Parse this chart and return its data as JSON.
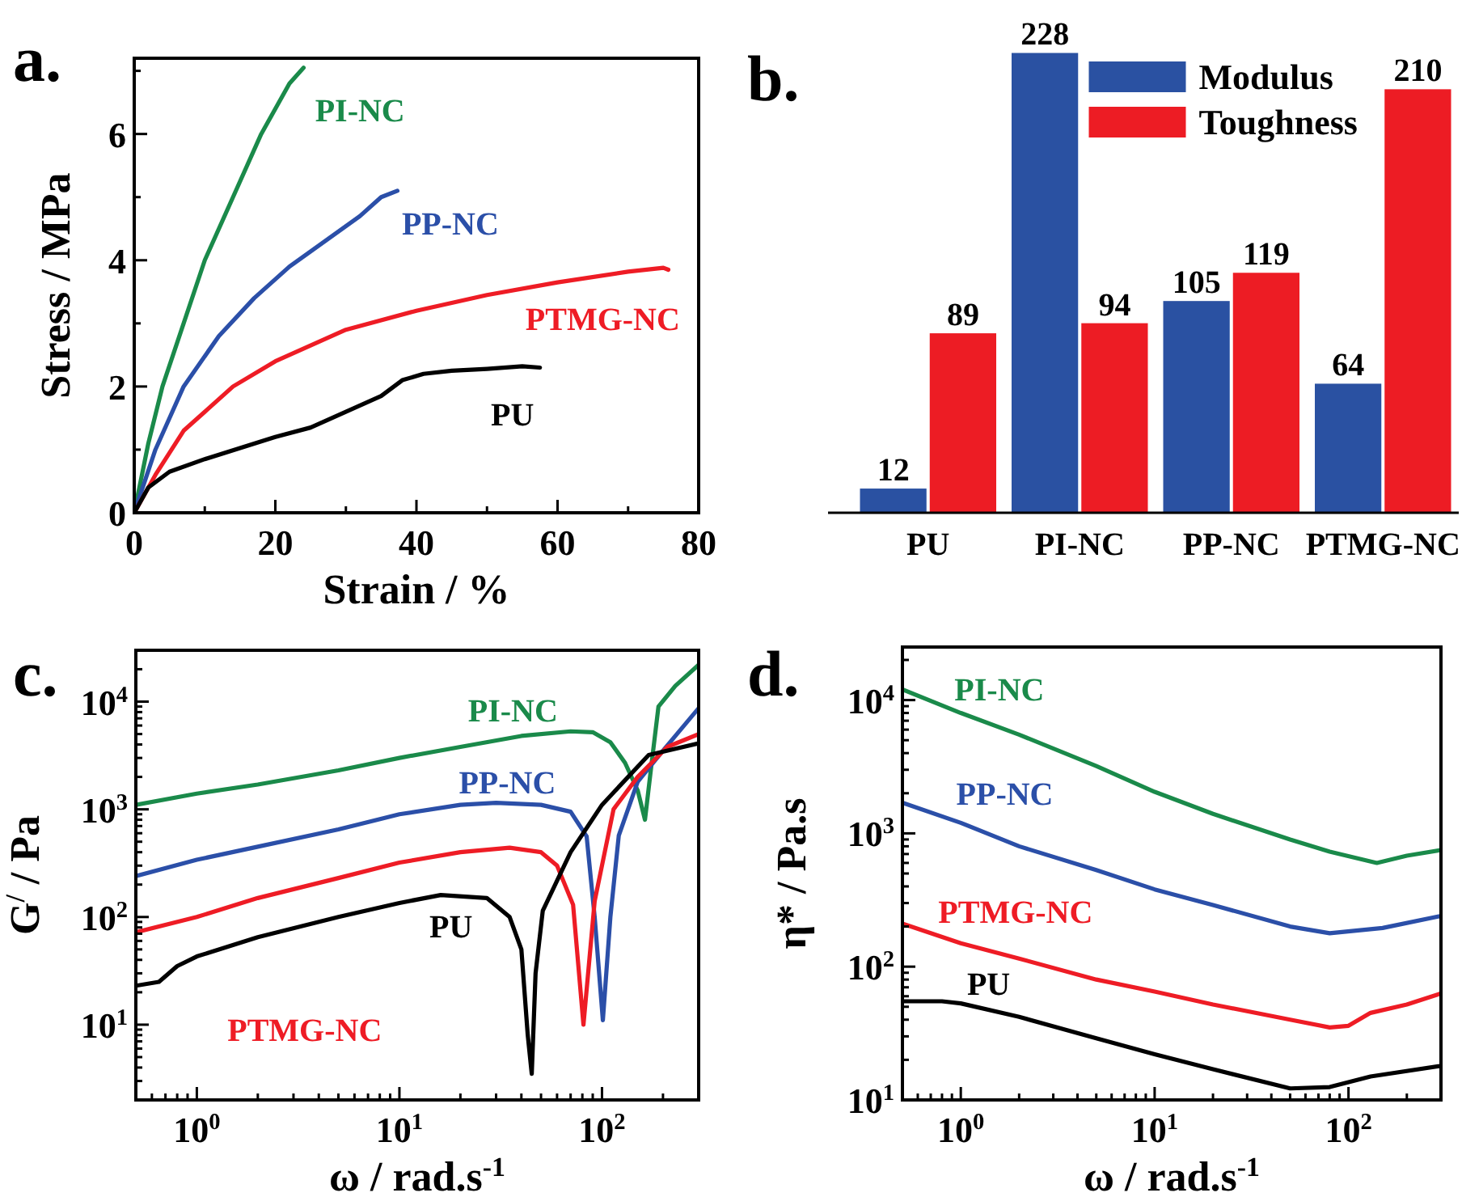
{
  "chart_data": [
    {
      "type": "line",
      "title": "a.",
      "xlabel": "Strain / %",
      "ylabel": "Stress / MPa",
      "xlim": [
        0,
        80
      ],
      "ylim": [
        0,
        7.2
      ],
      "legend": false,
      "line_style": "solid",
      "marker": "none",
      "xticks": [
        0,
        {
          "value": 10,
          "label": null
        },
        20,
        {
          "value": 30,
          "label": null
        },
        40,
        {
          "value": 50,
          "label": null
        },
        60,
        {
          "value": 70,
          "label": null
        },
        80
      ],
      "yticks": [
        0,
        {
          "value": 1,
          "label": null
        },
        2,
        {
          "value": 3,
          "label": null
        },
        4,
        {
          "value": 5,
          "label": null
        },
        6,
        {
          "value": 7,
          "label": null
        }
      ],
      "series": [
        {
          "name": "PI-NC",
          "color": "#1a8a4a",
          "x": [
            0,
            2,
            4,
            7,
            10,
            14,
            18,
            22,
            24
          ],
          "values": [
            0,
            1.1,
            2,
            3,
            4,
            5,
            6,
            6.8,
            7.05
          ]
        },
        {
          "name": "PP-NC",
          "color": "#2b4fa8",
          "x": [
            0,
            3,
            7,
            12,
            17,
            22,
            27,
            32,
            35,
            37.3
          ],
          "values": [
            0,
            1,
            2,
            2.8,
            3.4,
            3.9,
            4.3,
            4.7,
            5,
            5.1
          ]
        },
        {
          "name": "PTMG-NC",
          "color": "#ee1c25",
          "x": [
            0,
            3,
            7,
            14,
            20,
            30,
            40,
            50,
            60,
            70,
            75,
            75.7
          ],
          "values": [
            0,
            0.6,
            1.3,
            2,
            2.4,
            2.9,
            3.2,
            3.45,
            3.65,
            3.82,
            3.88,
            3.85
          ]
        },
        {
          "name": "PU",
          "color": "#000000",
          "x": [
            0,
            2,
            5,
            10,
            20,
            25,
            30,
            35,
            38,
            41,
            45,
            50,
            55,
            57.5
          ],
          "values": [
            0,
            0.4,
            0.65,
            0.85,
            1.2,
            1.35,
            1.6,
            1.85,
            2.1,
            2.2,
            2.25,
            2.28,
            2.32,
            2.3
          ]
        }
      ]
    },
    {
      "type": "bar",
      "title": "b.",
      "categories": [
        "PU",
        "PI-NC",
        "PP-NC",
        "PTMG-NC"
      ],
      "legend": "top",
      "data_labels": true,
      "series": [
        {
          "name": "Modulus",
          "color": "#2a51a2",
          "values": [
            12,
            228,
            105,
            64
          ]
        },
        {
          "name": "Toughness",
          "color": "#ed1c24",
          "values": [
            89,
            94,
            119,
            210
          ]
        }
      ]
    },
    {
      "type": "line",
      "title": "c.",
      "xlabel": "ω / rad.s$^{-1}$",
      "ylabel": "G$^{/}$ / Pa",
      "log": "xy",
      "xlim": [
        0.5,
        300
      ],
      "ylim": [
        2,
        30000
      ],
      "legend": false,
      "line_style": "solid",
      "marker": "none",
      "xticks": [
        {
          "value": 0.5,
          "label": null
        },
        {
          "value": 0.6,
          "label": null
        },
        {
          "value": 0.7,
          "label": null
        },
        {
          "value": 0.8,
          "label": null
        },
        {
          "value": 0.9,
          "label": null
        },
        {
          "value": 1,
          "label": "10$^{0}$"
        },
        {
          "value": 2,
          "label": null
        },
        {
          "value": 3,
          "label": null
        },
        {
          "value": 4,
          "label": null
        },
        {
          "value": 5,
          "label": null
        },
        {
          "value": 6,
          "label": null
        },
        {
          "value": 7,
          "label": null
        },
        {
          "value": 8,
          "label": null
        },
        {
          "value": 9,
          "label": null
        },
        {
          "value": 10,
          "label": "10$^{1}$"
        },
        {
          "value": 20,
          "label": null
        },
        {
          "value": 30,
          "label": null
        },
        {
          "value": 40,
          "label": null
        },
        {
          "value": 50,
          "label": null
        },
        {
          "value": 60,
          "label": null
        },
        {
          "value": 70,
          "label": null
        },
        {
          "value": 80,
          "label": null
        },
        {
          "value": 90,
          "label": null
        },
        {
          "value": 100,
          "label": "10$^{2}$"
        },
        {
          "value": 200,
          "label": null
        },
        {
          "value": 300,
          "label": null
        }
      ],
      "yticks": [
        {
          "value": 2,
          "label": null
        },
        {
          "value": 3,
          "label": null
        },
        {
          "value": 4,
          "label": null
        },
        {
          "value": 5,
          "label": null
        },
        {
          "value": 6,
          "label": null
        },
        {
          "value": 7,
          "label": null
        },
        {
          "value": 8,
          "label": null
        },
        {
          "value": 9,
          "label": null
        },
        {
          "value": 10,
          "label": "10$^{1}$"
        },
        {
          "value": 20,
          "label": null
        },
        {
          "value": 30,
          "label": null
        },
        {
          "value": 40,
          "label": null
        },
        {
          "value": 50,
          "label": null
        },
        {
          "value": 60,
          "label": null
        },
        {
          "value": 70,
          "label": null
        },
        {
          "value": 80,
          "label": null
        },
        {
          "value": 90,
          "label": null
        },
        {
          "value": 100,
          "label": "10$^{2}$"
        },
        {
          "value": 200,
          "label": null
        },
        {
          "value": 300,
          "label": null
        },
        {
          "value": 400,
          "label": null
        },
        {
          "value": 500,
          "label": null
        },
        {
          "value": 600,
          "label": null
        },
        {
          "value": 700,
          "label": null
        },
        {
          "value": 800,
          "label": null
        },
        {
          "value": 900,
          "label": null
        },
        {
          "value": 1000,
          "label": "10$^{3}$"
        },
        {
          "value": 2000,
          "label": null
        },
        {
          "value": 3000,
          "label": null
        },
        {
          "value": 4000,
          "label": null
        },
        {
          "value": 5000,
          "label": null
        },
        {
          "value": 6000,
          "label": null
        },
        {
          "value": 7000,
          "label": null
        },
        {
          "value": 8000,
          "label": null
        },
        {
          "value": 9000,
          "label": null
        },
        {
          "value": 10000,
          "label": "10$^{4}$"
        },
        {
          "value": 20000,
          "label": null
        },
        {
          "value": 30000,
          "label": null
        }
      ],
      "series": [
        {
          "name": "PI-NC",
          "color": "#1a8a4a",
          "x": [
            0.5,
            1,
            2,
            5,
            10,
            20,
            40,
            70,
            90,
            110,
            130,
            150,
            163,
            175,
            190,
            230,
            300
          ],
          "values": [
            1100,
            1400,
            1700,
            2300,
            3000,
            3800,
            4800,
            5300,
            5200,
            4200,
            2700,
            1500,
            800,
            2500,
            9000,
            14000,
            22000
          ]
        },
        {
          "name": "PP-NC",
          "color": "#2b4fa8",
          "x": [
            0.5,
            1,
            2,
            5,
            10,
            20,
            30,
            50,
            70,
            84,
            92,
            101,
            110,
            121,
            150,
            200,
            300
          ],
          "values": [
            240,
            340,
            450,
            650,
            900,
            1100,
            1150,
            1100,
            950,
            560,
            100,
            11,
            100,
            570,
            1800,
            3500,
            8700
          ]
        },
        {
          "name": "PTMG-NC",
          "color": "#ee1c25",
          "x": [
            0.5,
            1,
            2,
            5,
            10,
            20,
            35,
            50,
            60,
            72,
            81,
            92,
            114,
            150,
            210,
            300
          ],
          "values": [
            72,
            100,
            150,
            230,
            320,
            400,
            440,
            400,
            300,
            130,
            10,
            140,
            1000,
            2000,
            3800,
            5000
          ]
        },
        {
          "name": "PU",
          "color": "#000000",
          "x": [
            0.5,
            0.65,
            0.8,
            1,
            2,
            5,
            10,
            16,
            27,
            35,
            40,
            43,
            45,
            47,
            51,
            70,
            100,
            170,
            300
          ],
          "values": [
            23,
            25,
            35,
            43,
            65,
            100,
            135,
            160,
            150,
            100,
            50,
            8,
            3.5,
            30,
            114,
            400,
            1100,
            3200,
            4100
          ]
        }
      ]
    },
    {
      "type": "line",
      "title": "d.",
      "xlabel": "ω / rad.s$^{-1}$",
      "ylabel": "η* / Pa.s",
      "log": "xy",
      "xlim": [
        0.5,
        300
      ],
      "ylim": [
        10,
        25000
      ],
      "legend": false,
      "line_style": "solid",
      "marker": "none",
      "xticks": [
        {
          "value": 0.5,
          "label": null
        },
        {
          "value": 0.6,
          "label": null
        },
        {
          "value": 0.7,
          "label": null
        },
        {
          "value": 0.8,
          "label": null
        },
        {
          "value": 0.9,
          "label": null
        },
        {
          "value": 1,
          "label": "10$^{0}$"
        },
        {
          "value": 2,
          "label": null
        },
        {
          "value": 3,
          "label": null
        },
        {
          "value": 4,
          "label": null
        },
        {
          "value": 5,
          "label": null
        },
        {
          "value": 6,
          "label": null
        },
        {
          "value": 7,
          "label": null
        },
        {
          "value": 8,
          "label": null
        },
        {
          "value": 9,
          "label": null
        },
        {
          "value": 10,
          "label": "10$^{1}$"
        },
        {
          "value": 20,
          "label": null
        },
        {
          "value": 30,
          "label": null
        },
        {
          "value": 40,
          "label": null
        },
        {
          "value": 50,
          "label": null
        },
        {
          "value": 60,
          "label": null
        },
        {
          "value": 70,
          "label": null
        },
        {
          "value": 80,
          "label": null
        },
        {
          "value": 90,
          "label": null
        },
        {
          "value": 100,
          "label": "10$^{2}$"
        },
        {
          "value": 200,
          "label": null
        },
        {
          "value": 300,
          "label": null
        }
      ],
      "yticks": [
        {
          "value": 10,
          "label": "10$^{1}$"
        },
        {
          "value": 20,
          "label": null
        },
        {
          "value": 30,
          "label": null
        },
        {
          "value": 40,
          "label": null
        },
        {
          "value": 50,
          "label": null
        },
        {
          "value": 60,
          "label": null
        },
        {
          "value": 70,
          "label": null
        },
        {
          "value": 80,
          "label": null
        },
        {
          "value": 90,
          "label": null
        },
        {
          "value": 100,
          "label": "10$^{2}$"
        },
        {
          "value": 200,
          "label": null
        },
        {
          "value": 300,
          "label": null
        },
        {
          "value": 400,
          "label": null
        },
        {
          "value": 500,
          "label": null
        },
        {
          "value": 600,
          "label": null
        },
        {
          "value": 700,
          "label": null
        },
        {
          "value": 800,
          "label": null
        },
        {
          "value": 900,
          "label": null
        },
        {
          "value": 1000,
          "label": "10$^{3}$"
        },
        {
          "value": 2000,
          "label": null
        },
        {
          "value": 3000,
          "label": null
        },
        {
          "value": 4000,
          "label": null
        },
        {
          "value": 5000,
          "label": null
        },
        {
          "value": 6000,
          "label": null
        },
        {
          "value": 7000,
          "label": null
        },
        {
          "value": 8000,
          "label": null
        },
        {
          "value": 9000,
          "label": null
        },
        {
          "value": 10000,
          "label": "10$^{4}$"
        },
        {
          "value": 20000,
          "label": null
        }
      ],
      "series": [
        {
          "name": "PI-NC",
          "color": "#1a8a4a",
          "x": [
            0.5,
            1,
            2,
            5,
            10,
            20,
            50,
            80,
            140,
            200,
            300
          ],
          "values": [
            12000,
            8000,
            5500,
            3200,
            2050,
            1400,
            900,
            730,
            600,
            680,
            750
          ]
        },
        {
          "name": "PP-NC",
          "color": "#2b4fa8",
          "x": [
            0.5,
            1,
            2,
            5,
            10,
            20,
            50,
            80,
            150,
            300
          ],
          "values": [
            1700,
            1200,
            800,
            530,
            380,
            290,
            200,
            178,
            195,
            240
          ]
        },
        {
          "name": "PTMG-NC",
          "color": "#ee1c25",
          "x": [
            0.5,
            1,
            2,
            5,
            10,
            20,
            50,
            80,
            100,
            130,
            200,
            300
          ],
          "values": [
            210,
            150,
            115,
            80,
            65,
            52,
            40,
            35,
            36,
            45,
            52,
            63
          ]
        },
        {
          "name": "PU",
          "color": "#000000",
          "x": [
            0.5,
            0.8,
            1,
            2,
            5,
            10,
            20,
            50,
            80,
            130,
            300
          ],
          "values": [
            55,
            55,
            53,
            42,
            29,
            22,
            17,
            12.2,
            12.5,
            15,
            18
          ]
        }
      ]
    }
  ]
}
